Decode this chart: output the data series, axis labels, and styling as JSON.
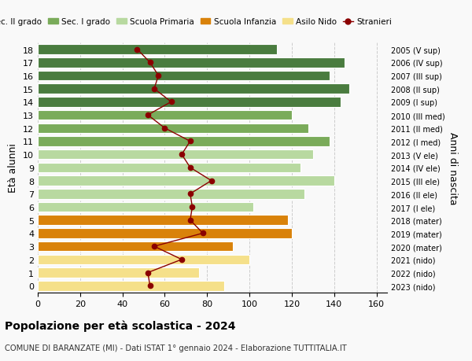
{
  "ages": [
    18,
    17,
    16,
    15,
    14,
    13,
    12,
    11,
    10,
    9,
    8,
    7,
    6,
    5,
    4,
    3,
    2,
    1,
    0
  ],
  "right_labels": [
    "2005 (V sup)",
    "2006 (IV sup)",
    "2007 (III sup)",
    "2008 (II sup)",
    "2009 (I sup)",
    "2010 (III med)",
    "2011 (II med)",
    "2012 (I med)",
    "2013 (V ele)",
    "2014 (IV ele)",
    "2015 (III ele)",
    "2016 (II ele)",
    "2017 (I ele)",
    "2018 (mater)",
    "2019 (mater)",
    "2020 (mater)",
    "2021 (nido)",
    "2022 (nido)",
    "2023 (nido)"
  ],
  "bar_values": [
    113,
    145,
    138,
    147,
    143,
    120,
    128,
    138,
    130,
    124,
    140,
    126,
    102,
    118,
    120,
    92,
    100,
    76,
    88
  ],
  "stranieri": [
    47,
    53,
    57,
    55,
    63,
    52,
    60,
    72,
    68,
    72,
    82,
    72,
    73,
    72,
    78,
    55,
    68,
    52,
    53
  ],
  "bar_colors": [
    "#4a7c3f",
    "#4a7c3f",
    "#4a7c3f",
    "#4a7c3f",
    "#4a7c3f",
    "#7aab5a",
    "#7aab5a",
    "#7aab5a",
    "#b8d9a0",
    "#b8d9a0",
    "#b8d9a0",
    "#b8d9a0",
    "#b8d9a0",
    "#d9820a",
    "#d9820a",
    "#d9820a",
    "#f5e08a",
    "#f5e08a",
    "#f5e08a"
  ],
  "legend_labels": [
    "Sec. II grado",
    "Sec. I grado",
    "Scuola Primaria",
    "Scuola Infanzia",
    "Asilo Nido",
    "Stranieri"
  ],
  "legend_colors": [
    "#4a7c3f",
    "#7aab5a",
    "#b8d9a0",
    "#d9820a",
    "#f5e08a",
    "#c0392b"
  ],
  "stranieri_color": "#8b0000",
  "xlabel_ticks": [
    0,
    20,
    40,
    60,
    80,
    100,
    120,
    140,
    160
  ],
  "xlim": [
    0,
    165
  ],
  "title": "Popolazione per età scolastica - 2024",
  "subtitle": "COMUNE DI BARANZATE (MI) - Dati ISTAT 1° gennaio 2024 - Elaborazione TUTTITALIA.IT",
  "ylabel": "Età alunni",
  "right_ylabel": "Anni di nascita",
  "background_color": "#f9f9f9",
  "grid_color": "#cccccc"
}
